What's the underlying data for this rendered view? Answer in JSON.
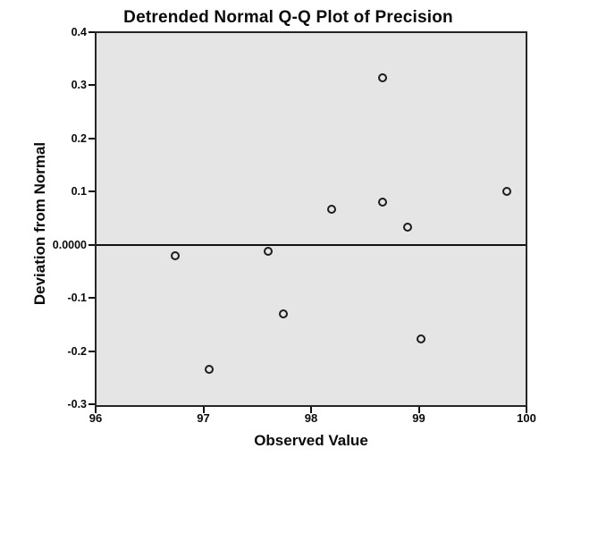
{
  "chart_data": {
    "type": "scatter",
    "title": "Detrended Normal Q-Q Plot of Precision",
    "xlabel": "Observed Value",
    "ylabel": "Deviation from Normal",
    "xlim": [
      96,
      100
    ],
    "ylim": [
      -0.3,
      0.4
    ],
    "x_ticks": [
      {
        "value": 96,
        "label": "96"
      },
      {
        "value": 97,
        "label": "97"
      },
      {
        "value": 98,
        "label": "98"
      },
      {
        "value": 99,
        "label": "99"
      },
      {
        "value": 100,
        "label": "100"
      }
    ],
    "y_ticks": [
      {
        "value": 0.4,
        "label": "0.4"
      },
      {
        "value": 0.3,
        "label": "0.3"
      },
      {
        "value": 0.2,
        "label": "0.2"
      },
      {
        "value": 0.1,
        "label": "0.1"
      },
      {
        "value": 0.0,
        "label": "0.0000"
      },
      {
        "value": -0.1,
        "label": "-0.1"
      },
      {
        "value": -0.2,
        "label": "-0.2"
      },
      {
        "value": -0.3,
        "label": "-0.3"
      }
    ],
    "reference_line_y": 0.0,
    "grid": false,
    "legend": "none",
    "marker": "open-circle",
    "plot_background_color": "#e5e5e5",
    "frame_color": "#262626",
    "points": [
      {
        "x": 96.74,
        "y": -0.02
      },
      {
        "x": 97.05,
        "y": -0.235
      },
      {
        "x": 97.6,
        "y": -0.013
      },
      {
        "x": 97.74,
        "y": -0.13
      },
      {
        "x": 98.19,
        "y": 0.067
      },
      {
        "x": 98.66,
        "y": 0.315
      },
      {
        "x": 98.66,
        "y": 0.081
      },
      {
        "x": 98.9,
        "y": 0.034
      },
      {
        "x": 99.02,
        "y": -0.178
      },
      {
        "x": 99.82,
        "y": 0.101
      }
    ]
  }
}
